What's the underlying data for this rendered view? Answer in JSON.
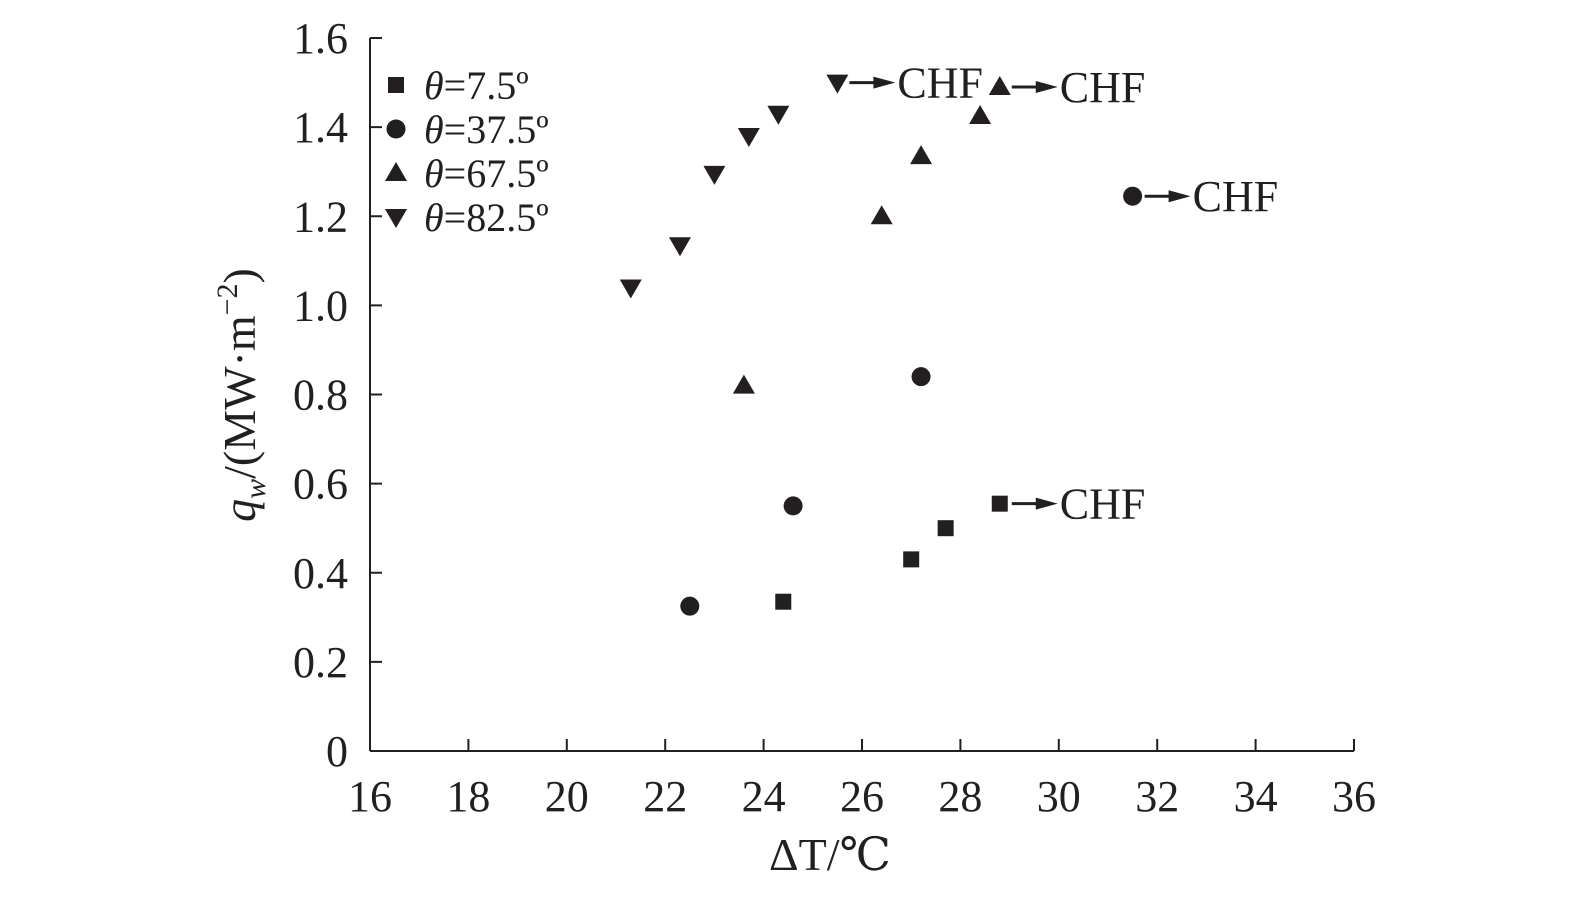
{
  "chart_data": {
    "type": "scatter",
    "xlabel": {
      "prefix": "ΔT/",
      "unit": "℃"
    },
    "ylabel": {
      "var": "q",
      "sub": "w",
      "unit": "/(MW·m",
      "exp": "−2",
      "close": ")"
    },
    "xlim": [
      16,
      36
    ],
    "ylim": [
      0,
      1.6
    ],
    "x_ticks": [
      16,
      18,
      20,
      22,
      24,
      26,
      28,
      30,
      32,
      34,
      36
    ],
    "y_ticks": [
      0,
      0.2,
      0.4,
      0.6,
      0.8,
      1.0,
      1.2,
      1.4,
      1.6
    ],
    "x_tick_labels": [
      "16",
      "18",
      "20",
      "22",
      "24",
      "26",
      "28",
      "30",
      "32",
      "34",
      "36"
    ],
    "y_tick_labels": [
      "0",
      "0.2",
      "0.4",
      "0.6",
      "0.8",
      "1.0",
      "1.2",
      "1.4",
      "1.6"
    ],
    "legend_position": "top-left",
    "series": [
      {
        "name": "θ=7.5º",
        "name_var": "θ",
        "name_rest": "=7.5º",
        "marker": "square",
        "color": "#231f20",
        "x": [
          24.4,
          27.0,
          27.7
        ],
        "y": [
          0.335,
          0.43,
          0.5
        ],
        "chf": {
          "x": 28.8,
          "y": 0.555,
          "label": "CHF"
        }
      },
      {
        "name": "θ=37.5º",
        "name_var": "θ",
        "name_rest": "=37.5º",
        "marker": "circle",
        "color": "#231f20",
        "x": [
          22.5,
          24.6,
          27.2
        ],
        "y": [
          0.325,
          0.55,
          0.84
        ],
        "chf": {
          "x": 31.5,
          "y": 1.245,
          "label": "CHF"
        }
      },
      {
        "name": "θ=67.5º",
        "name_var": "θ",
        "name_rest": "=67.5º",
        "marker": "triangle-up",
        "color": "#231f20",
        "x": [
          23.6,
          26.4,
          27.2,
          28.4
        ],
        "y": [
          0.82,
          1.2,
          1.335,
          1.425
        ],
        "chf": {
          "x": 28.8,
          "y": 1.49,
          "label": "CHF"
        }
      },
      {
        "name": "θ=82.5º",
        "name_var": "θ",
        "name_rest": "=82.5º",
        "marker": "triangle-down",
        "color": "#231f20",
        "x": [
          21.3,
          22.3,
          23.0,
          23.7,
          24.3
        ],
        "y": [
          1.04,
          1.135,
          1.295,
          1.38,
          1.43
        ],
        "chf": {
          "x": 25.5,
          "y": 1.5,
          "label": "CHF"
        }
      }
    ]
  }
}
